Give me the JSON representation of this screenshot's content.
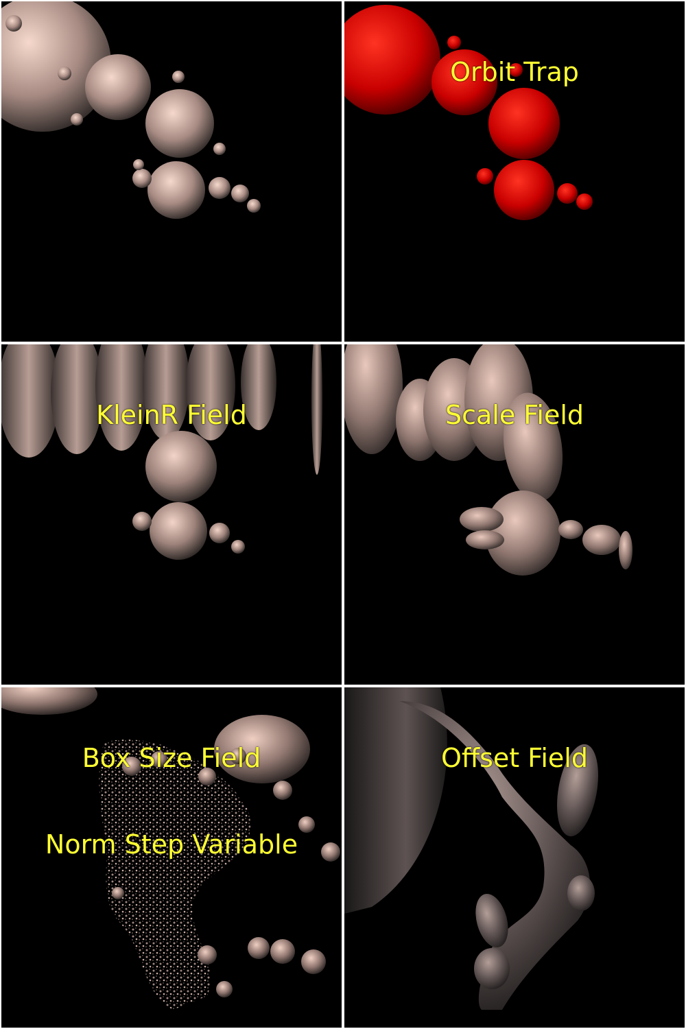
{
  "panels": [
    {
      "id": "base",
      "captions": [],
      "palette": "bronze"
    },
    {
      "id": "orbit-trap",
      "captions": [
        "Orbit Trap"
      ],
      "palette": "red"
    },
    {
      "id": "kleinr-field",
      "captions": [
        "KleinR Field"
      ],
      "palette": "bronze"
    },
    {
      "id": "scale-field",
      "captions": [
        "Scale Field"
      ],
      "palette": "bronze"
    },
    {
      "id": "box-size-field",
      "captions": [
        "Box Size Field",
        "Norm Step Variable"
      ],
      "palette": "bronze"
    },
    {
      "id": "offset-field",
      "captions": [
        "Offset Field"
      ],
      "palette": "bronze"
    }
  ],
  "colors": {
    "background": "#000000",
    "separator": "#ffffff",
    "caption": "#ffff33",
    "bronze_light": "#f3d4c8",
    "bronze_dark": "#2a2624",
    "red_light": "#ff2a1a",
    "red_dark": "#5a0000"
  }
}
